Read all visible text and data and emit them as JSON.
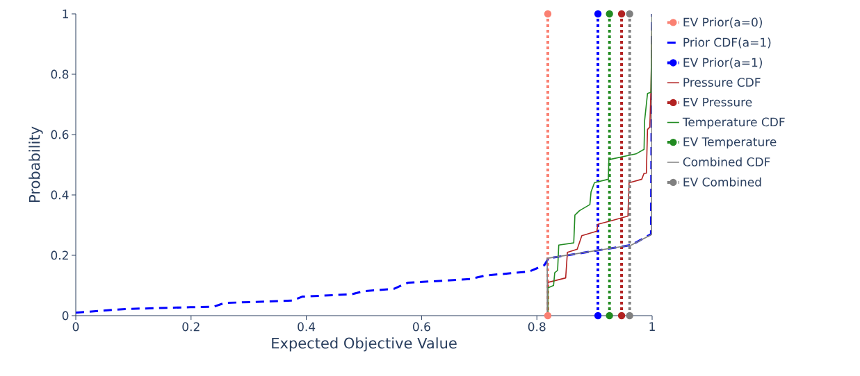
{
  "chart_data": {
    "type": "line",
    "xlabel": "Expected Objective Value",
    "ylabel": "Probability",
    "xlim": [
      0,
      1
    ],
    "ylim": [
      0,
      1
    ],
    "xticks": [
      0,
      0.2,
      0.4,
      0.6,
      0.8,
      1
    ],
    "yticks": [
      0,
      0.2,
      0.4,
      0.6,
      0.8,
      1
    ],
    "grid": false,
    "legend": "right",
    "series": [
      {
        "name": "EV Prior(a=0)",
        "color": "#fa8072",
        "line_style": "dotted",
        "marker": "circle",
        "x": [
          0.819,
          0.819
        ],
        "values": [
          0,
          1
        ]
      },
      {
        "name": "Prior CDF(a=1)",
        "color": "#0000ff",
        "line_style": "dashed",
        "x": [
          0,
          0.086,
          0.199,
          0.24,
          0.258,
          0.376,
          0.393,
          0.479,
          0.5,
          0.552,
          0.576,
          0.684,
          0.711,
          0.786,
          0.813,
          0.82,
          0.964,
          0.998,
          1
        ],
        "values": [
          0.01,
          0.022,
          0.028,
          0.03,
          0.042,
          0.05,
          0.063,
          0.071,
          0.081,
          0.089,
          0.109,
          0.121,
          0.133,
          0.146,
          0.167,
          0.19,
          0.234,
          0.27,
          1
        ]
      },
      {
        "name": "EV Prior(a=1)",
        "color": "#0000ff",
        "line_style": "dotted",
        "marker": "circle",
        "x": [
          0.906,
          0.906
        ],
        "values": [
          0,
          1
        ]
      },
      {
        "name": "Pressure CDF",
        "color": "#b22222",
        "line_style": "solid",
        "x": [
          0.819,
          0.819,
          0.85,
          0.853,
          0.87,
          0.878,
          0.904,
          0.906,
          0.93,
          0.958,
          0.96,
          0.982,
          0.986,
          0.99,
          0.992,
          0.996,
          0.998,
          1
        ],
        "values": [
          0,
          0.11,
          0.125,
          0.21,
          0.22,
          0.265,
          0.28,
          0.303,
          0.315,
          0.33,
          0.44,
          0.452,
          0.472,
          0.472,
          0.617,
          0.625,
          0.755,
          1
        ]
      },
      {
        "name": "EV Pressure",
        "color": "#b22222",
        "line_style": "dotted",
        "marker": "circle",
        "x": [
          0.947,
          0.947
        ],
        "values": [
          0,
          1
        ]
      },
      {
        "name": "Temperature CDF",
        "color": "#228b22",
        "line_style": "solid",
        "x": [
          0.819,
          0.819,
          0.829,
          0.831,
          0.836,
          0.838,
          0.864,
          0.866,
          0.874,
          0.892,
          0.894,
          0.9,
          0.924,
          0.925,
          0.972,
          0.986,
          0.987,
          0.992,
          0.998,
          1
        ],
        "values": [
          0,
          0.092,
          0.1,
          0.142,
          0.15,
          0.234,
          0.241,
          0.333,
          0.348,
          0.368,
          0.41,
          0.441,
          0.452,
          0.517,
          0.536,
          0.551,
          0.647,
          0.736,
          0.74,
          1
        ]
      },
      {
        "name": "EV Temperature",
        "color": "#228b22",
        "line_style": "dotted",
        "marker": "circle",
        "x": [
          0.926,
          0.926
        ],
        "values": [
          0,
          1
        ]
      },
      {
        "name": "Combined CDF",
        "color": "#808080",
        "line_style": "solid",
        "x": [
          0.818,
          0.818,
          0.964,
          0.998,
          0.999,
          1
        ],
        "values": [
          0,
          0.19,
          0.234,
          0.268,
          0.27,
          1
        ]
      },
      {
        "name": "EV Combined",
        "color": "#808080",
        "line_style": "dotted",
        "marker": "circle",
        "x": [
          0.961,
          0.961
        ],
        "values": [
          0,
          1
        ]
      }
    ]
  }
}
